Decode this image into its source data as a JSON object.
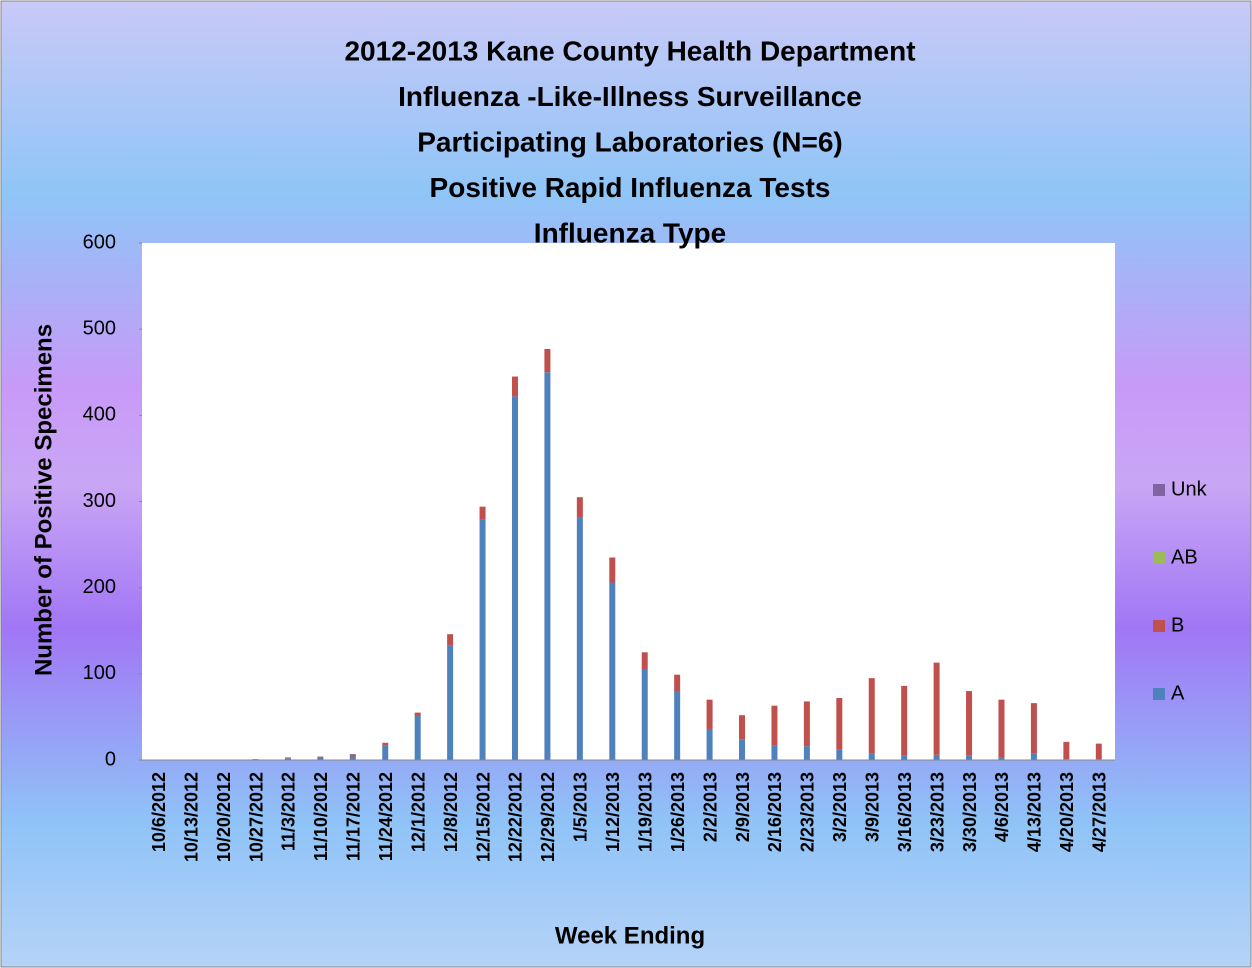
{
  "chart_data": {
    "type": "bar",
    "stacked": true,
    "title": [
      "2012-2013 Kane County Health Department",
      "Influenza -Like-Illness Surveillance",
      "Participating Laboratories (N=6)",
      "Positive Rapid Influenza Tests",
      "Influenza Type"
    ],
    "x_label": "Week Ending",
    "y_label": "Number of Positive Specimens",
    "categories": [
      "10/6/2012",
      "10/13/2012",
      "10/20/2012",
      "10/27/2012",
      "11/3/2012",
      "11/10/2012",
      "11/17/2012",
      "11/24/2012",
      "12/1/2012",
      "12/8/2012",
      "12/15/2012",
      "12/22/2012",
      "12/29/2012",
      "1/5/2013",
      "1/12/2013",
      "1/19/2013",
      "1/26/2013",
      "2/2/2013",
      "2/9/2013",
      "2/16/2013",
      "2/23/2013",
      "3/2/2013",
      "3/9/2013",
      "3/16/2013",
      "3/23/2013",
      "3/30/2013",
      "4/6/2013",
      "4/13/2013",
      "4/20/2013",
      "4/27/2013"
    ],
    "series": [
      {
        "name": "A",
        "color": "#4f81bd",
        "values": [
          0,
          0,
          0,
          0,
          2,
          3,
          4,
          17,
          51,
          133,
          279,
          422,
          450,
          281,
          206,
          105,
          79,
          36,
          24,
          17,
          16,
          12,
          8,
          5,
          6,
          5,
          3,
          8,
          1,
          1
        ]
      },
      {
        "name": "B",
        "color": "#c0504d",
        "values": [
          0,
          0,
          0,
          1,
          1,
          1,
          2,
          3,
          4,
          13,
          15,
          23,
          27,
          24,
          29,
          20,
          20,
          34,
          28,
          46,
          52,
          60,
          87,
          81,
          107,
          75,
          67,
          58,
          20,
          18
        ]
      },
      {
        "name": "AB",
        "color": "#9bbb59",
        "values": [
          0,
          0,
          0,
          0,
          0,
          0,
          0,
          0,
          0,
          0,
          0,
          0,
          0,
          0,
          0,
          0,
          0,
          0,
          0,
          0,
          0,
          0,
          0,
          0,
          0,
          0,
          0,
          0,
          0,
          0
        ]
      },
      {
        "name": "Unk",
        "color": "#8064a2",
        "values": [
          0,
          0,
          0,
          0,
          0,
          0,
          1,
          0,
          0,
          0,
          0,
          0,
          0,
          0,
          0,
          0,
          0,
          0,
          0,
          0,
          0,
          0,
          0,
          0,
          0,
          0,
          0,
          0,
          0,
          0
        ]
      }
    ],
    "ylim": [
      0,
      600
    ],
    "yticks": [
      0,
      100,
      200,
      300,
      400,
      500,
      600
    ],
    "legend": "right"
  }
}
